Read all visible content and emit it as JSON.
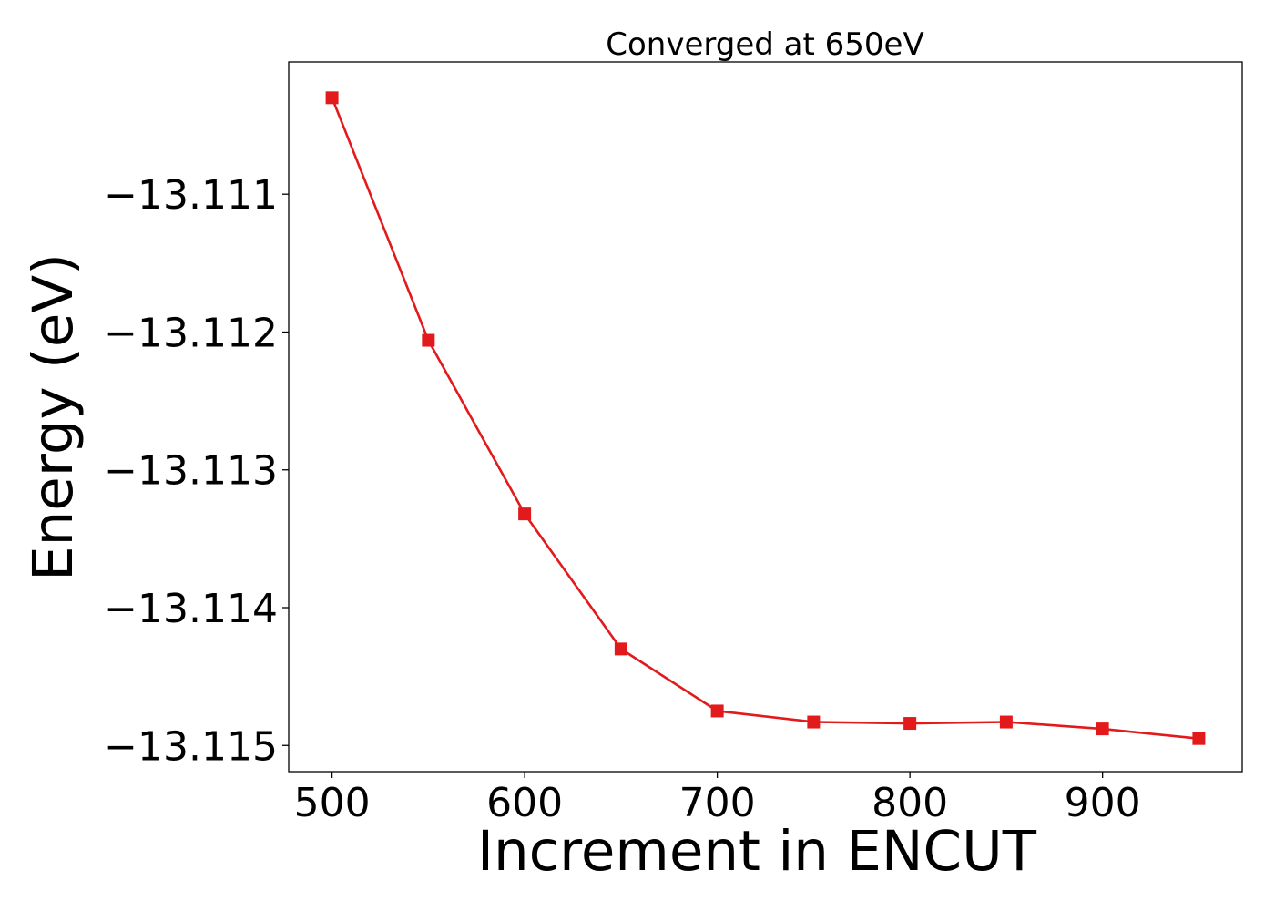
{
  "chart_data": {
    "type": "line",
    "title": "Converged at 650eV",
    "xlabel": "Increment in ENCUT",
    "ylabel": "Energy (eV)",
    "x": [
      500,
      550,
      600,
      650,
      700,
      750,
      800,
      850,
      900,
      950
    ],
    "series": [
      {
        "values": [
          -13.1103,
          -13.11206,
          -13.11332,
          -13.1143,
          -13.11475,
          -13.11483,
          -13.11484,
          -13.11483,
          -13.11488,
          -13.11495
        ],
        "color": "#e31a1c",
        "marker": "square"
      }
    ],
    "x_ticks": [
      500,
      600,
      700,
      800,
      900
    ],
    "x_tick_labels": [
      "500",
      "600",
      "700",
      "800",
      "900"
    ],
    "y_ticks": [
      -13.111,
      -13.112,
      -13.113,
      -13.114,
      -13.115
    ],
    "y_tick_labels": [
      "−13.111",
      "−13.112",
      "−13.113",
      "−13.114",
      "−13.115"
    ],
    "xlim": [
      477.5,
      972.5
    ],
    "ylim": [
      -13.11519,
      -13.11004
    ],
    "grid": false,
    "legend": "none"
  }
}
